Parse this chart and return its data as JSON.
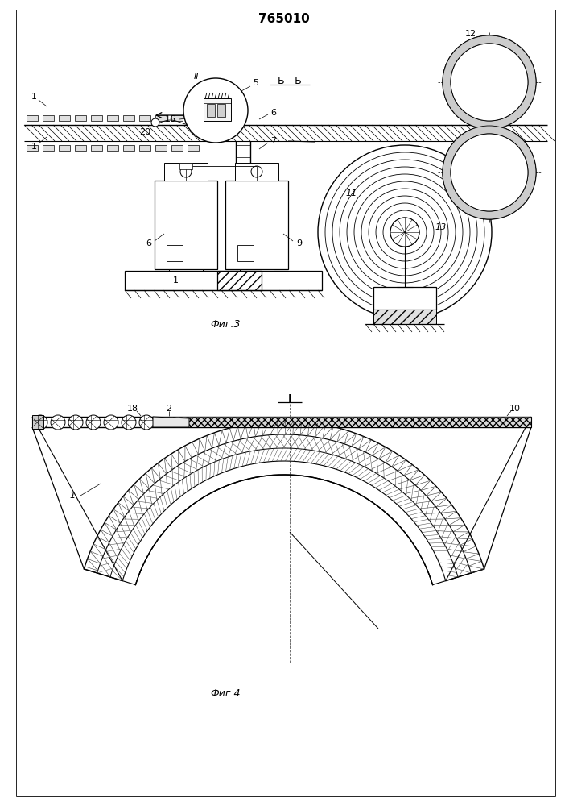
{
  "title": "765010",
  "fig3_label": "Фиг.3",
  "fig4_label": "Фиг.4",
  "section_bb": "Б - Б",
  "section_1": "I",
  "bg_color": "#ffffff",
  "fig_width": 7.07,
  "fig_height": 10.0,
  "dpi": 100,
  "lbl_II": "II",
  "lbl_1": "1",
  "lbl_2": "2",
  "lbl_5": "5",
  "lbl_6": "6",
  "lbl_7": "7",
  "lbl_9": "9",
  "lbl_10": "10",
  "lbl_11": "11",
  "lbl_12": "12",
  "lbl_13": "13",
  "lbl_16": "16",
  "lbl_18": "18",
  "lbl_20": "20"
}
